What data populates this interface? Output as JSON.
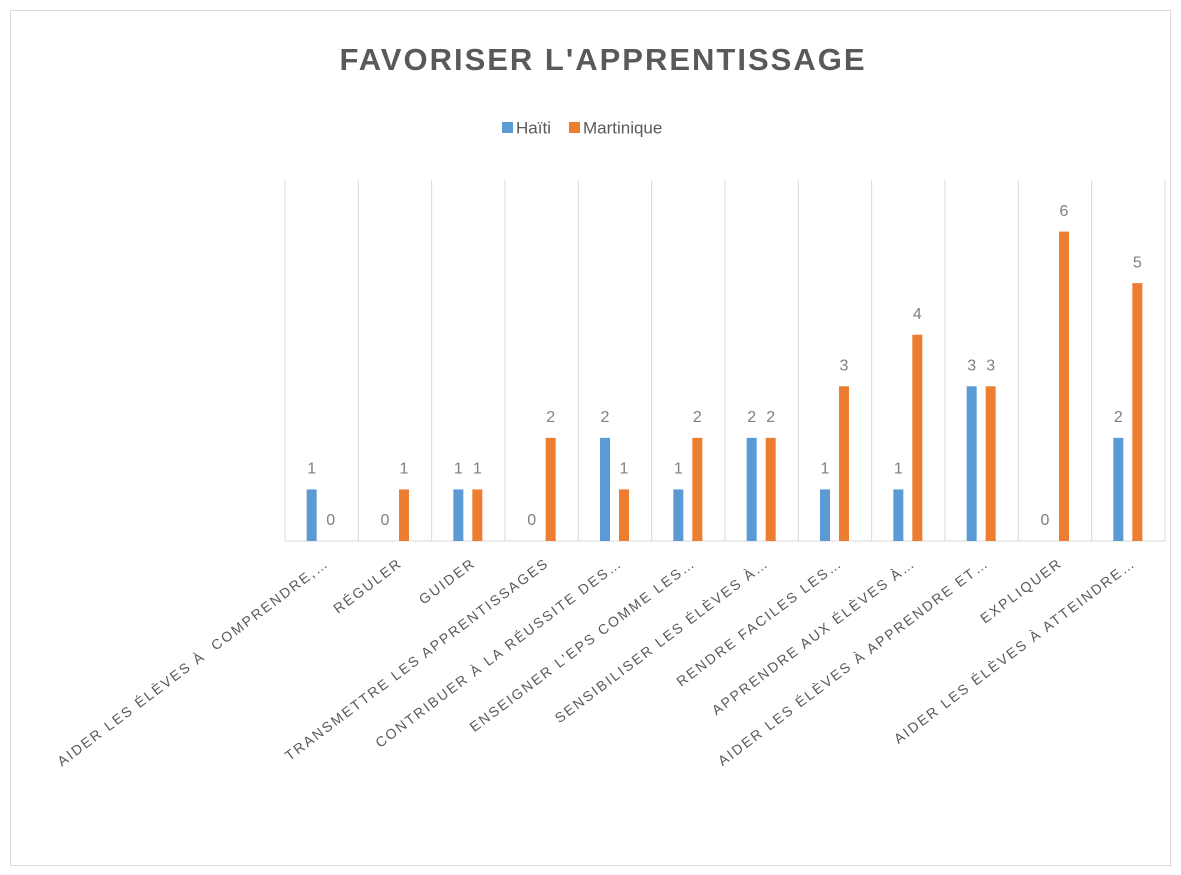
{
  "chart_data": {
    "type": "bar",
    "title": "FAVORISER L'APPRENTISSAGE",
    "categories": [
      "AIDER LES ÉLÈVES À  COMPRENDRE,…",
      "RÉGULER",
      "GUIDER",
      "TRANSMETTRE LES APPRENTISSAGES",
      "CONTRIBUER À LA RÉUSSITE DES…",
      "ENSEIGNER L’EPS COMME LES…",
      "SENSIBILISER LES ÉLÈVES À…",
      "RENDRE FACILES LES…",
      "APPRENDRE AUX ÉLÈVES À…",
      "AIDER LES ÉLÈVES À APPRENDRE ET…",
      "EXPLIQUER",
      "AIDER LES ÉLÈVES À ATTEINDRE…"
    ],
    "series": [
      {
        "name": "Haïti",
        "color": "#5b9bd5",
        "values": [
          1,
          0,
          1,
          0,
          2,
          1,
          2,
          1,
          1,
          3,
          0,
          2
        ]
      },
      {
        "name": "Martinique",
        "color": "#ed7d31",
        "values": [
          0,
          1,
          1,
          2,
          1,
          2,
          2,
          3,
          4,
          3,
          6,
          5
        ]
      }
    ],
    "ylim": [
      0,
      7
    ],
    "legend": "top"
  }
}
